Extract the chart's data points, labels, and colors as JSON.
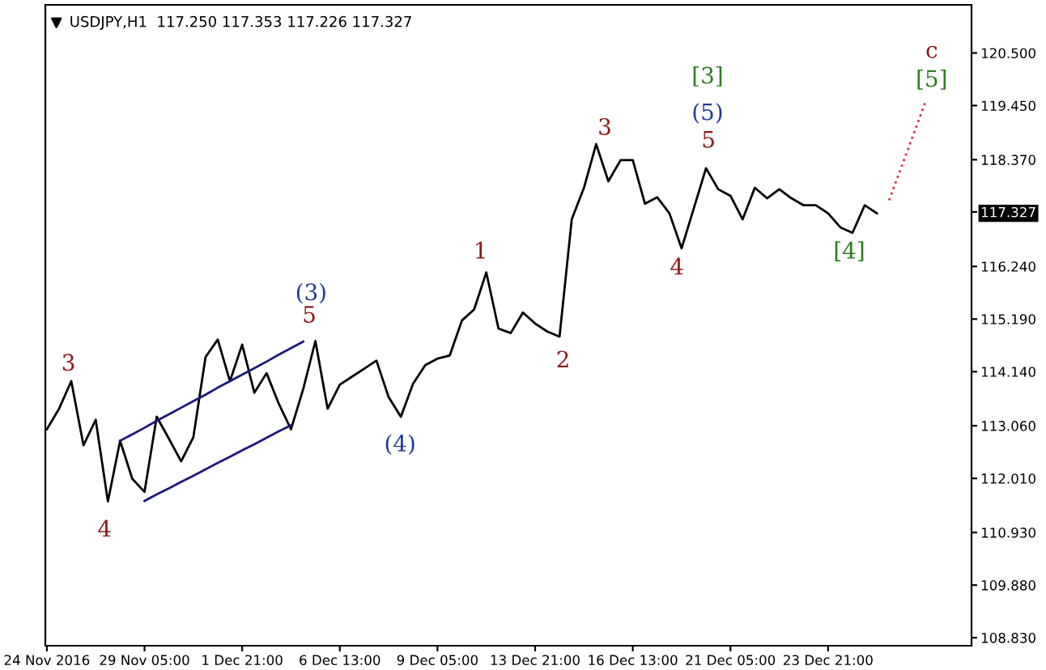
{
  "chart_data": {
    "type": "line",
    "title": "USDJPY,H1  117.250 117.353 117.226 117.327",
    "categories": [
      "24 Nov 2016",
      null,
      null,
      null,
      null,
      null,
      null,
      null,
      "29 Nov 05:00",
      null,
      null,
      null,
      null,
      null,
      null,
      null,
      "1 Dec 21:00",
      null,
      null,
      null,
      null,
      null,
      null,
      null,
      "6 Dec 13:00",
      null,
      null,
      null,
      null,
      null,
      null,
      null,
      "9 Dec 05:00",
      null,
      null,
      null,
      null,
      null,
      null,
      null,
      "13 Dec 21:00",
      null,
      null,
      null,
      null,
      null,
      null,
      null,
      "16 Dec 13:00",
      null,
      null,
      null,
      null,
      null,
      null,
      null,
      "21 Dec 05:00",
      null,
      null,
      null,
      null,
      null,
      null,
      null,
      "23 Dec 21:00",
      null,
      null,
      null,
      null,
      null,
      null,
      null,
      null,
      null,
      null,
      null
    ],
    "series": [
      {
        "color": "#000000",
        "values": [
          112.99,
          113.4,
          113.95,
          112.67,
          113.18,
          111.55,
          112.76,
          112.0,
          111.74,
          113.24,
          112.8,
          112.35,
          112.83,
          114.43,
          114.78,
          113.95,
          114.68,
          113.72,
          114.11,
          113.5,
          112.99,
          113.79,
          114.75,
          113.4,
          113.88,
          114.04,
          114.2,
          114.36,
          113.63,
          113.24,
          113.9,
          114.27,
          114.4,
          114.46,
          115.16,
          115.38,
          116.12,
          115.0,
          114.91,
          115.32,
          115.1,
          114.94,
          114.84,
          117.18,
          117.81,
          118.68,
          117.94,
          118.36,
          118.36,
          117.49,
          117.62,
          117.3,
          116.6,
          117.4,
          118.2,
          117.78,
          117.65,
          117.18,
          117.81,
          117.6,
          117.78,
          117.6,
          117.46,
          117.46,
          117.3,
          117.02,
          116.91,
          117.46,
          117.3,
          null,
          null,
          null,
          null,
          null,
          null,
          null
        ]
      },
      {
        "color": "#e0303a",
        "line_style": "dotted",
        "values": [
          null,
          null,
          null,
          null,
          null,
          null,
          null,
          null,
          null,
          null,
          null,
          null,
          null,
          null,
          null,
          null,
          null,
          null,
          null,
          null,
          null,
          null,
          null,
          null,
          null,
          null,
          null,
          null,
          null,
          null,
          null,
          null,
          null,
          null,
          null,
          null,
          null,
          null,
          null,
          null,
          null,
          null,
          null,
          null,
          null,
          null,
          null,
          null,
          null,
          null,
          null,
          null,
          null,
          null,
          null,
          null,
          null,
          null,
          null,
          null,
          null,
          null,
          null,
          null,
          null,
          null,
          null,
          null,
          null,
          117.56,
          118.22,
          118.88,
          119.54,
          null,
          null,
          null
        ]
      },
      {
        "color": "#1a1a7a",
        "values": [
          null,
          null,
          null,
          null,
          null,
          null,
          112.76,
          112.89,
          113.02,
          113.16,
          113.29,
          113.42,
          113.55,
          113.68,
          113.82,
          113.95,
          114.08,
          114.21,
          114.34,
          114.48,
          114.61,
          114.74,
          null,
          null,
          null,
          null,
          null,
          null,
          null,
          null,
          null,
          null,
          null,
          null,
          null,
          null,
          null,
          null,
          null,
          null,
          null,
          null,
          null,
          null,
          null,
          null,
          null,
          null,
          null,
          null,
          null,
          null,
          null,
          null,
          null,
          null,
          null,
          null,
          null,
          null,
          null,
          null,
          null,
          null,
          null,
          null,
          null,
          null,
          null,
          null,
          null,
          null,
          null,
          null,
          null,
          null
        ]
      },
      {
        "color": "#1a1a7a",
        "values": [
          null,
          null,
          null,
          null,
          null,
          null,
          null,
          null,
          111.56,
          111.69,
          111.81,
          111.94,
          112.06,
          112.19,
          112.32,
          112.44,
          112.57,
          112.69,
          112.82,
          112.95,
          113.07,
          null,
          null,
          null,
          null,
          null,
          null,
          null,
          null,
          null,
          null,
          null,
          null,
          null,
          null,
          null,
          null,
          null,
          null,
          null,
          null,
          null,
          null,
          null,
          null,
          null,
          null,
          null,
          null,
          null,
          null,
          null,
          null,
          null,
          null,
          null,
          null,
          null,
          null,
          null,
          null,
          null,
          null,
          null,
          null,
          null,
          null,
          null,
          null,
          null,
          null,
          null,
          null,
          null,
          null,
          null
        ]
      }
    ],
    "ylim": [
      108.67,
      121.46
    ],
    "yticks": [
      {
        "value": 120.5,
        "label": "120.500"
      },
      {
        "value": 119.45,
        "label": "119.450"
      },
      {
        "value": 118.37,
        "label": "118.370"
      },
      {
        "value": 117.327,
        "label": "117.327"
      },
      {
        "value": 116.24,
        "label": "116.240"
      },
      {
        "value": 115.19,
        "label": "115.190"
      },
      {
        "value": 114.14,
        "label": "114.140"
      },
      {
        "value": 113.06,
        "label": "113.060"
      },
      {
        "value": 112.01,
        "label": "112.010"
      },
      {
        "value": 110.93,
        "label": "110.930"
      },
      {
        "value": 109.88,
        "label": "109.880"
      },
      {
        "value": 108.83,
        "label": "108.830"
      }
    ],
    "annotations": [
      "3",
      "4",
      "(3)",
      "5",
      "(4)",
      "1",
      "2",
      "3",
      "[3]",
      "(5)",
      "5",
      "4",
      "[4]",
      "c",
      "[5]"
    ],
    "grid": false,
    "legend": false
  }
}
